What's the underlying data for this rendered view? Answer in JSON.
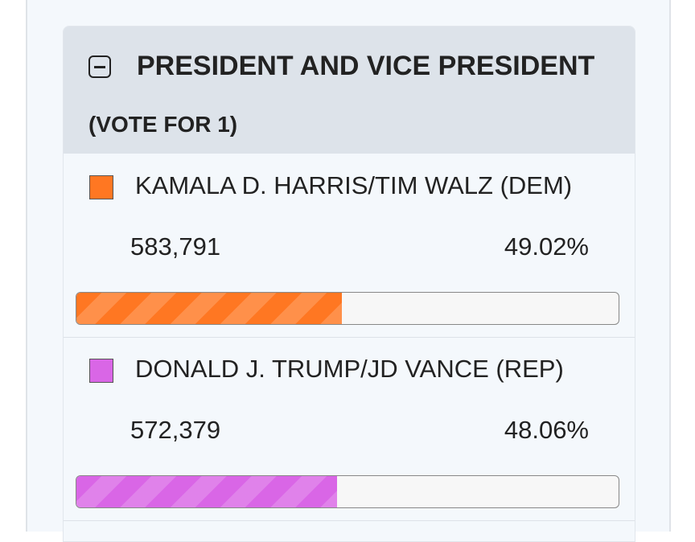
{
  "contest": {
    "title": "PRESIDENT AND VICE PRESIDENT",
    "vote_for": "(VOTE FOR 1)",
    "candidates": [
      {
        "name": "KAMALA D. HARRIS/TIM WALZ (DEM)",
        "votes": "583,791",
        "percent": {
          "value": 49.02,
          "label": "49.02%"
        },
        "color": "#ff7722"
      },
      {
        "name": "DONALD J. TRUMP/JD VANCE (REP)",
        "votes": "572,379",
        "percent": {
          "value": 48.06,
          "label": "48.06%"
        },
        "color": "#d966e6"
      }
    ]
  }
}
